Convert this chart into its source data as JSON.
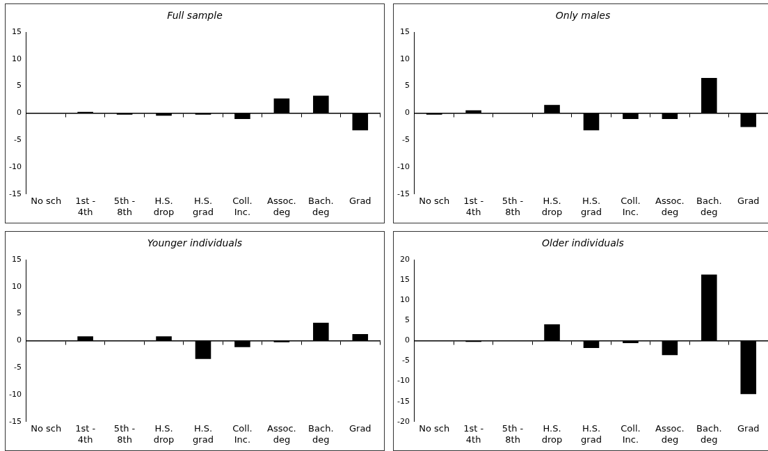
{
  "chart_data": [
    {
      "type": "bar",
      "title": "Full sample",
      "categories": [
        "No sch",
        "1st - 4th",
        "5th - 8th",
        "H.S. drop",
        "H.S. grad",
        "Coll. Inc.",
        "Assoc. deg",
        "Bach. deg",
        "Grad"
      ],
      "values": [
        0,
        0.2,
        -0.3,
        -0.5,
        -0.3,
        -1.1,
        2.7,
        3.2,
        -3.2
      ],
      "color": "#000000",
      "ylim": [
        -15,
        15
      ],
      "yticks": [
        -15,
        -10,
        -5,
        0,
        5,
        10,
        15
      ]
    },
    {
      "type": "bar",
      "title": "Only males",
      "categories": [
        "No sch",
        "1st - 4th",
        "5th - 8th",
        "H.S. drop",
        "H.S. grad",
        "Coll. Inc.",
        "Assoc. deg",
        "Bach. deg",
        "Grad"
      ],
      "values": [
        -0.3,
        0.5,
        0,
        1.5,
        -3.2,
        -1.1,
        -1.1,
        6.5,
        -2.6
      ],
      "color": "#000000",
      "ylim": [
        -15,
        15
      ],
      "yticks": [
        -15,
        -10,
        -5,
        0,
        5,
        10,
        15
      ]
    },
    {
      "type": "bar",
      "title": "Younger individuals",
      "categories": [
        "No sch",
        "1st - 4th",
        "5th - 8th",
        "H.S. drop",
        "H.S. grad",
        "Coll. Inc.",
        "Assoc. deg",
        "Bach. deg",
        "Grad"
      ],
      "values": [
        0,
        0.8,
        0,
        0.8,
        -3.4,
        -1.2,
        -0.3,
        3.3,
        1.2
      ],
      "color": "#000000",
      "ylim": [
        -15,
        15
      ],
      "yticks": [
        -15,
        -10,
        -5,
        0,
        5,
        10,
        15
      ]
    },
    {
      "type": "bar",
      "title": "Older individuals",
      "categories": [
        "No sch",
        "1st - 4th",
        "5th - 8th",
        "H.S. drop",
        "H.S. grad",
        "Coll. Inc.",
        "Assoc. deg",
        "Bach. deg",
        "Grad"
      ],
      "values": [
        0,
        -0.3,
        0,
        4.0,
        -1.8,
        -0.6,
        -3.6,
        16.3,
        -13.2
      ],
      "color": "#000000",
      "ylim": [
        -20,
        20
      ],
      "yticks": [
        -20,
        -15,
        -10,
        -5,
        0,
        5,
        10,
        15,
        20
      ]
    }
  ]
}
